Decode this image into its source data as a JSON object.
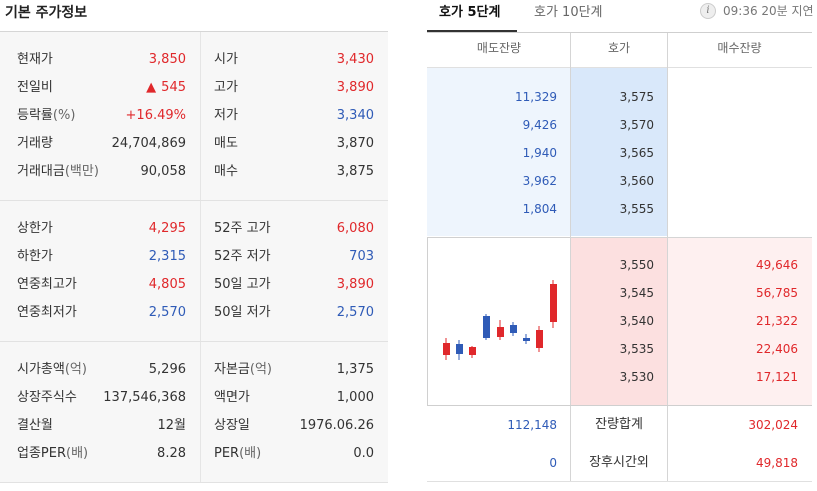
{
  "left": {
    "title": "기본 주가정보",
    "group1": [
      {
        "l1": "현재가",
        "u1": "",
        "v1": "3,850",
        "c1": "red",
        "l2": "시가",
        "u2": "",
        "v2": "3,430",
        "c2": "red"
      },
      {
        "l1": "전일비",
        "u1": "",
        "v1": "545",
        "c1": "red",
        "arrow": "▲",
        "l2": "고가",
        "u2": "",
        "v2": "3,890",
        "c2": "red"
      },
      {
        "l1": "등락률",
        "u1": "(%)",
        "v1": "+16.49%",
        "c1": "red",
        "l2": "저가",
        "u2": "",
        "v2": "3,340",
        "c2": "blue"
      },
      {
        "l1": "거래량",
        "u1": "",
        "v1": "24,704,869",
        "c1": "dark",
        "l2": "매도",
        "u2": "",
        "v2": "3,870",
        "c2": "dark"
      },
      {
        "l1": "거래대금",
        "u1": "(백만)",
        "v1": "90,058",
        "c1": "dark",
        "l2": "매수",
        "u2": "",
        "v2": "3,875",
        "c2": "dark"
      }
    ],
    "group2": [
      {
        "l1": "상한가",
        "u1": "",
        "v1": "4,295",
        "c1": "red",
        "l2": "52주 고가",
        "u2": "",
        "v2": "6,080",
        "c2": "red"
      },
      {
        "l1": "하한가",
        "u1": "",
        "v1": "2,315",
        "c1": "blue",
        "l2": "52주 저가",
        "u2": "",
        "v2": "703",
        "c2": "blue"
      },
      {
        "l1": "연중최고가",
        "u1": "",
        "v1": "4,805",
        "c1": "red",
        "l2": "50일 고가",
        "u2": "",
        "v2": "3,890",
        "c2": "red"
      },
      {
        "l1": "연중최저가",
        "u1": "",
        "v1": "2,570",
        "c1": "blue",
        "l2": "50일 저가",
        "u2": "",
        "v2": "2,570",
        "c2": "blue"
      }
    ],
    "group3": [
      {
        "l1": "시가총액",
        "u1": "(억)",
        "v1": "5,296",
        "c1": "dark",
        "l2": "자본금",
        "u2": "(억)",
        "v2": "1,375",
        "c2": "dark"
      },
      {
        "l1": "상장주식수",
        "u1": "",
        "v1": "137,546,368",
        "c1": "dark",
        "l2": "액면가",
        "u2": "",
        "v2": "1,000",
        "c2": "dark"
      },
      {
        "l1": "결산월",
        "u1": "",
        "v1": "12월",
        "c1": "dark",
        "l2": "상장일",
        "u2": "",
        "v2": "1976.06.26",
        "c2": "dark"
      },
      {
        "l1": "업종PER",
        "u1": "(배)",
        "v1": "8.28",
        "c1": "dark",
        "l2": "PER",
        "u2": "(배)",
        "v2": "0.0",
        "c2": "dark"
      }
    ]
  },
  "right": {
    "tab_active": "호가 5단계",
    "tab_inactive": "호가 10단계",
    "info_icon": "i",
    "delay_text": "09:36 20분 지연",
    "headers": {
      "ask": "매도잔량",
      "price": "호가",
      "bid": "매수잔량"
    },
    "asks": [
      {
        "qty": "11,329",
        "price": "3,575"
      },
      {
        "qty": "9,426",
        "price": "3,570"
      },
      {
        "qty": "1,940",
        "price": "3,565"
      },
      {
        "qty": "3,962",
        "price": "3,560"
      },
      {
        "qty": "1,804",
        "price": "3,555"
      }
    ],
    "bids": [
      {
        "price": "3,550",
        "qty": "49,646"
      },
      {
        "price": "3,545",
        "qty": "56,785"
      },
      {
        "price": "3,540",
        "qty": "21,322"
      },
      {
        "price": "3,535",
        "qty": "22,406"
      },
      {
        "price": "3,530",
        "qty": "17,121"
      }
    ],
    "total": {
      "ask": "112,148",
      "label": "잔량합계",
      "bid": "302,024"
    },
    "after_hours": {
      "ask": "0",
      "label": "장후시간외",
      "bid": "49,818"
    },
    "colors": {
      "up": "#e0282b",
      "down": "#2f5bb7"
    }
  }
}
